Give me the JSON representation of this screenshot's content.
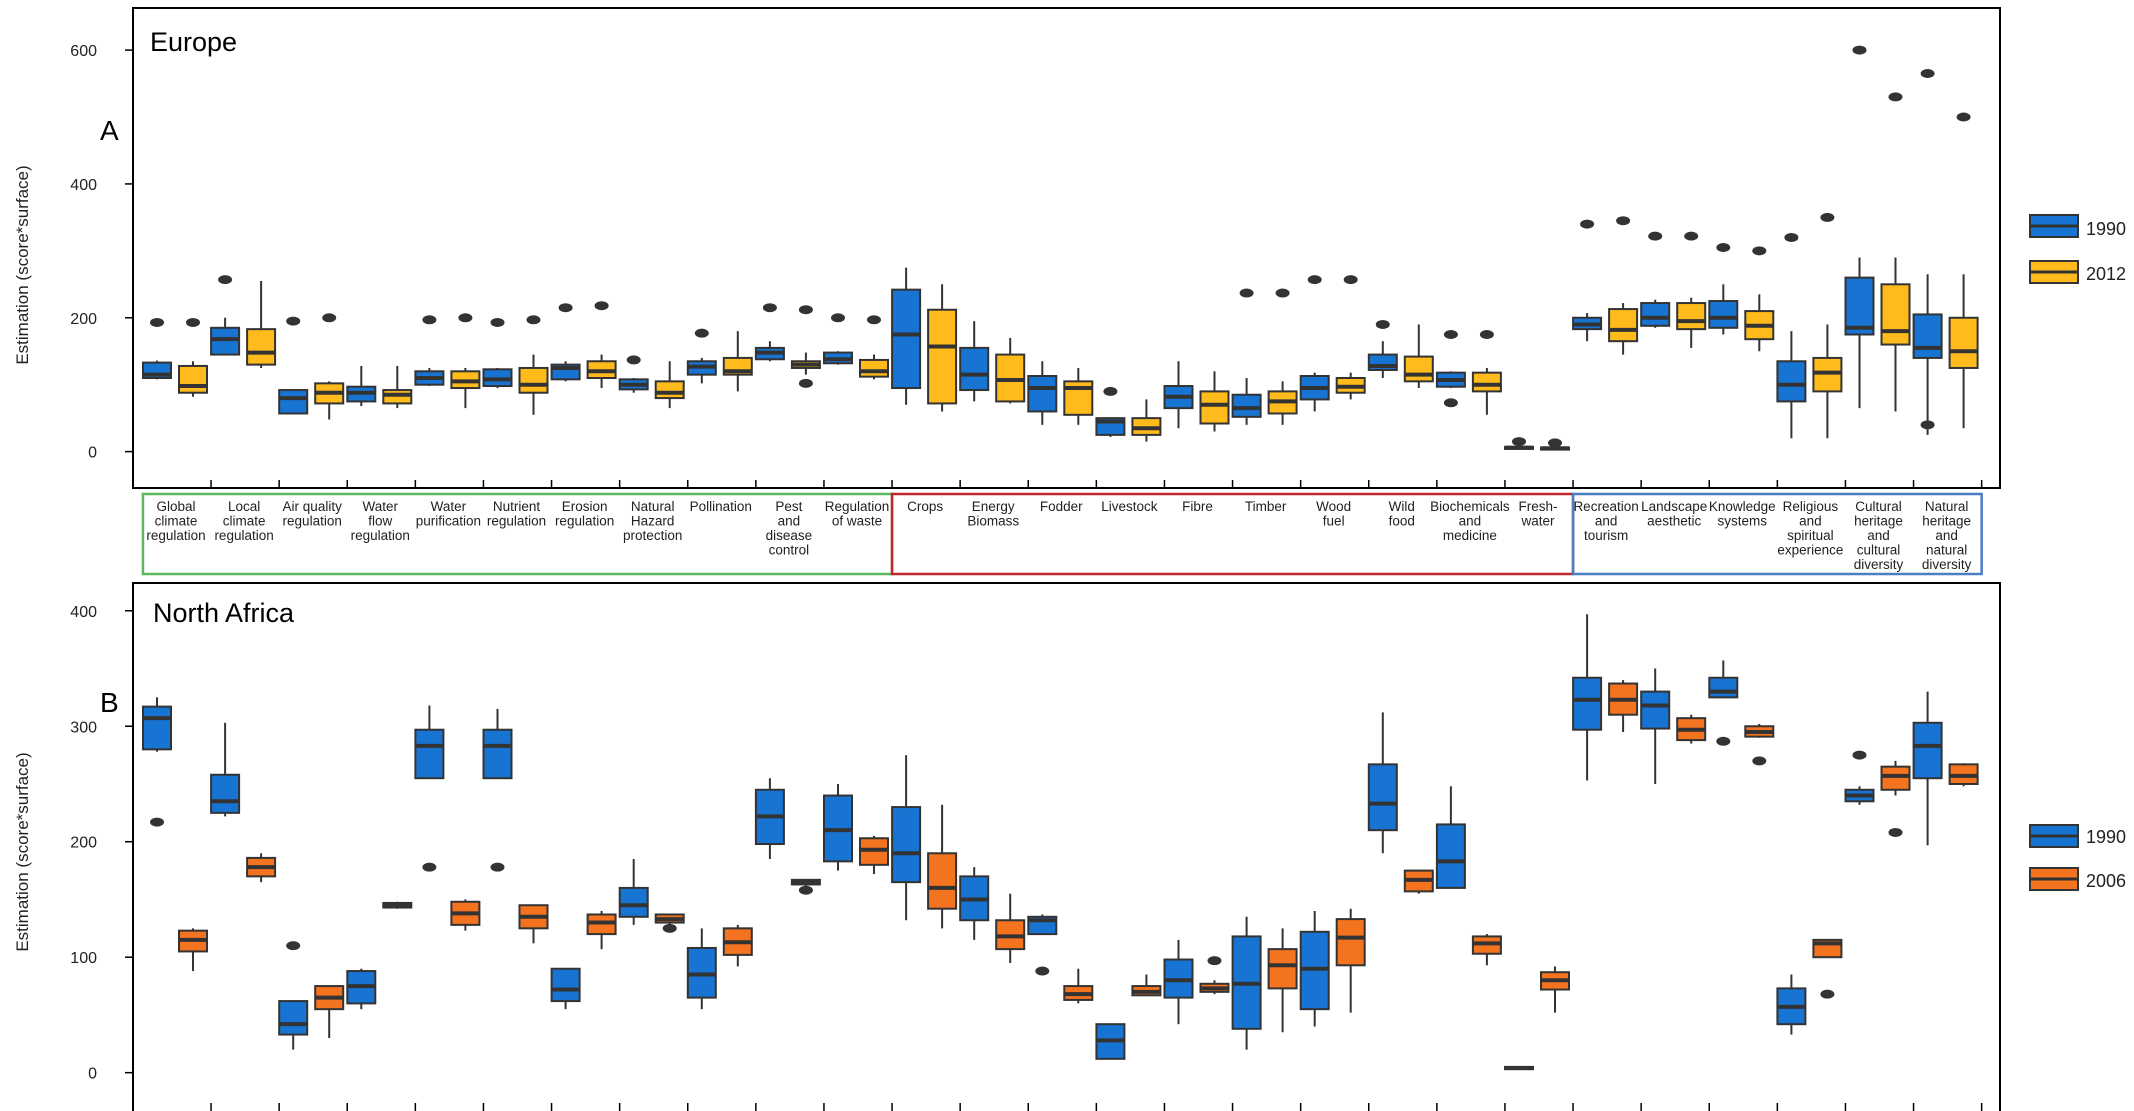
{
  "figure": {
    "panel_a_region": "Europe",
    "panel_a_letter": "A",
    "panel_b_region": "North Africa",
    "panel_b_letter": "B",
    "ylabel": "Estimation (score*surface)"
  },
  "category_labels": [
    "Global|climate|regulation",
    "Local|climate|regulation",
    "Air quality|regulation",
    "Water|flow|regulation",
    "Water|purification",
    "Nutrient|regulation",
    "Erosion|regulation",
    "Natural|Hazard|protection",
    "Pollination",
    "Pest|and|disease|control",
    "Regulation|of waste",
    "Crops",
    "Energy|Biomass",
    "Fodder",
    "Livestock",
    "Fibre",
    "Timber",
    "Wood|fuel",
    "Wild|food",
    "Biochemicals|and|medicine",
    "Fresh-|water",
    "Recreation|and|tourism",
    "Landscape|aesthetic",
    "Knowledge|systems",
    "Religious|and|spiritual|experience",
    "Cultural|heritage|and|cultural|diversity",
    "Natural|heritage|and|natural|diversity"
  ],
  "category_groups": [
    {
      "first": 0,
      "last": 10,
      "color": "#5cb85c"
    },
    {
      "first": 11,
      "last": 20,
      "color": "#c0282d"
    },
    {
      "first": 21,
      "last": 26,
      "color": "#4a7fc4"
    }
  ],
  "colors": {
    "y1990": "#1874d2",
    "y2012": "#ffbb1c",
    "y2006": "#f4731f",
    "stroke": "#333333",
    "frame": "#000000"
  },
  "chart_data": [
    {
      "type": "box",
      "title": "Europe",
      "ylabel": "Estimation (score*surface)",
      "ylim": [
        -20,
        630
      ],
      "yticks": [
        0,
        200,
        400,
        600
      ],
      "legend": {
        "position": "right",
        "entries": [
          "1990",
          "2012"
        ]
      },
      "series": [
        {
          "name": "1990",
          "color": "#1874d2",
          "boxes": [
            [
              108,
              110,
              115,
              133,
              136,
              [
                193
              ]
            ],
            [
              148,
              145,
              168,
              185,
              200,
              [
                257
              ]
            ],
            [
              57,
              57,
              80,
              92,
              92,
              [
                195
              ]
            ],
            [
              68,
              75,
              88,
              97,
              128,
              []
            ],
            [
              98,
              100,
              110,
              120,
              125,
              [
                197
              ]
            ],
            [
              95,
              98,
              108,
              123,
              125,
              [
                193
              ]
            ],
            [
              105,
              108,
              125,
              130,
              135,
              [
                215
              ]
            ],
            [
              88,
              93,
              100,
              108,
              110,
              [
                137
              ]
            ],
            [
              102,
              115,
              127,
              135,
              140,
              [
                177
              ]
            ],
            [
              135,
              138,
              148,
              155,
              165,
              [
                215
              ]
            ],
            [
              130,
              132,
              138,
              148,
              150,
              [
                200
              ]
            ],
            [
              70,
              95,
              175,
              242,
              275,
              []
            ],
            [
              75,
              92,
              115,
              155,
              195,
              []
            ],
            [
              40,
              60,
              95,
              113,
              135,
              []
            ],
            [
              22,
              25,
              45,
              50,
              50,
              [
                90
              ]
            ],
            [
              35,
              65,
              82,
              98,
              135,
              []
            ],
            [
              40,
              52,
              65,
              85,
              110,
              [
                237
              ]
            ],
            [
              60,
              78,
              95,
              113,
              118,
              [
                257
              ]
            ],
            [
              110,
              122,
              128,
              145,
              165,
              [
                190
              ]
            ],
            [
              95,
              97,
              107,
              118,
              120,
              [
                175,
                73
              ]
            ],
            [
              4,
              5,
              6,
              7,
              8,
              [
                15
              ]
            ],
            [
              165,
              183,
              190,
              200,
              207,
              [
                340
              ]
            ],
            [
              185,
              188,
              200,
              222,
              227,
              [
                322
              ]
            ],
            [
              175,
              185,
              200,
              225,
              250,
              [
                305
              ]
            ],
            [
              20,
              75,
              100,
              135,
              180,
              [
                320
              ]
            ],
            [
              65,
              175,
              185,
              260,
              290,
              [
                600
              ]
            ],
            [
              25,
              140,
              155,
              205,
              265,
              [
                565,
                40
              ]
            ]
          ]
        },
        {
          "name": "2012",
          "color": "#ffbb1c",
          "boxes": [
            [
              82,
              88,
              98,
              128,
              135,
              [
                193
              ]
            ],
            [
              125,
              130,
              148,
              183,
              255,
              []
            ],
            [
              48,
              72,
              88,
              102,
              105,
              [
                200
              ]
            ],
            [
              65,
              72,
              85,
              92,
              128,
              []
            ],
            [
              65,
              95,
              105,
              120,
              125,
              [
                200
              ]
            ],
            [
              55,
              88,
              100,
              125,
              145,
              [
                197
              ]
            ],
            [
              95,
              110,
              120,
              135,
              145,
              [
                218
              ]
            ],
            [
              65,
              80,
              88,
              105,
              135,
              []
            ],
            [
              90,
              115,
              120,
              140,
              180,
              []
            ],
            [
              115,
              125,
              130,
              135,
              148,
              [
                212,
                102
              ]
            ],
            [
              108,
              112,
              120,
              137,
              145,
              [
                197
              ]
            ],
            [
              60,
              72,
              157,
              212,
              250,
              []
            ],
            [
              72,
              75,
              107,
              145,
              170,
              []
            ],
            [
              40,
              55,
              95,
              105,
              125,
              []
            ],
            [
              15,
              25,
              35,
              50,
              78,
              []
            ],
            [
              30,
              42,
              70,
              90,
              120,
              []
            ],
            [
              40,
              57,
              75,
              90,
              105,
              [
                237
              ]
            ],
            [
              78,
              88,
              97,
              110,
              118,
              [
                257
              ]
            ],
            [
              95,
              105,
              115,
              142,
              190,
              []
            ],
            [
              55,
              90,
              100,
              118,
              125,
              [
                175
              ]
            ],
            [
              3,
              4,
              5,
              6,
              7,
              [
                13
              ]
            ],
            [
              145,
              165,
              182,
              213,
              222,
              [
                345
              ]
            ],
            [
              155,
              183,
              195,
              222,
              230,
              [
                322
              ]
            ],
            [
              150,
              168,
              188,
              210,
              235,
              [
                300
              ]
            ],
            [
              20,
              90,
              118,
              140,
              190,
              [
                350
              ]
            ],
            [
              60,
              160,
              180,
              250,
              290,
              [
                530
              ]
            ],
            [
              35,
              125,
              150,
              200,
              265,
              [
                500
              ]
            ]
          ]
        }
      ]
    },
    {
      "type": "box",
      "title": "North Africa",
      "ylabel": "Estimation (score*surface)",
      "ylim": [
        -15,
        405
      ],
      "yticks": [
        0,
        100,
        200,
        300,
        400
      ],
      "legend": {
        "position": "right",
        "entries": [
          "1990",
          "2006"
        ]
      },
      "series": [
        {
          "name": "1990",
          "color": "#1874d2",
          "boxes": [
            [
              278,
              280,
              307,
              317,
              325,
              [
                217
              ]
            ],
            [
              222,
              225,
              235,
              258,
              303,
              []
            ],
            [
              20,
              33,
              42,
              62,
              62,
              [
                110
              ]
            ],
            [
              55,
              60,
              75,
              88,
              90,
              []
            ],
            [
              255,
              255,
              283,
              297,
              318,
              [
                178
              ]
            ],
            [
              255,
              255,
              283,
              297,
              315,
              [
                178
              ]
            ],
            [
              55,
              62,
              72,
              90,
              90,
              []
            ],
            [
              128,
              135,
              145,
              160,
              185,
              []
            ],
            [
              55,
              65,
              85,
              108,
              125,
              []
            ],
            [
              185,
              198,
              222,
              245,
              255,
              []
            ],
            [
              175,
              183,
              210,
              240,
              250,
              []
            ],
            [
              132,
              165,
              190,
              230,
              275,
              []
            ],
            [
              115,
              132,
              150,
              170,
              178,
              []
            ],
            [
              120,
              120,
              132,
              135,
              137,
              [
                88
              ]
            ],
            [
              12,
              12,
              28,
              42,
              42,
              []
            ],
            [
              42,
              65,
              80,
              98,
              115,
              []
            ],
            [
              20,
              38,
              77,
              118,
              135,
              []
            ],
            [
              40,
              55,
              90,
              122,
              140,
              []
            ],
            [
              190,
              210,
              233,
              267,
              312,
              []
            ],
            [
              160,
              160,
              183,
              215,
              248,
              []
            ],
            [
              3,
              3,
              4,
              5,
              5,
              []
            ],
            [
              253,
              297,
              323,
              342,
              397,
              []
            ],
            [
              250,
              298,
              318,
              330,
              350,
              []
            ],
            [
              325,
              325,
              330,
              342,
              357,
              [
                287
              ]
            ],
            [
              33,
              42,
              57,
              73,
              85,
              []
            ],
            [
              232,
              235,
              240,
              245,
              248,
              [
                275
              ]
            ],
            [
              197,
              255,
              283,
              303,
              330,
              []
            ]
          ]
        },
        {
          "name": "2006",
          "color": "#f4731f",
          "boxes": [
            [
              88,
              105,
              115,
              123,
              125,
              []
            ],
            [
              165,
              170,
              178,
              186,
              190,
              []
            ],
            [
              30,
              55,
              65,
              75,
              75,
              []
            ],
            [
              142,
              143,
              145,
              147,
              148,
              []
            ],
            [
              123,
              128,
              138,
              148,
              150,
              []
            ],
            [
              112,
              125,
              135,
              145,
              145,
              []
            ],
            [
              107,
              120,
              130,
              137,
              140,
              []
            ],
            [
              125,
              130,
              133,
              137,
              137,
              [
                125
              ]
            ],
            [
              92,
              102,
              113,
              125,
              128,
              []
            ],
            [
              160,
              163,
              165,
              167,
              167,
              [
                158
              ]
            ],
            [
              172,
              180,
              193,
              203,
              205,
              []
            ],
            [
              125,
              142,
              160,
              190,
              232,
              []
            ],
            [
              95,
              107,
              118,
              132,
              155,
              []
            ],
            [
              60,
              63,
              68,
              75,
              90,
              []
            ],
            [
              67,
              67,
              70,
              75,
              85,
              []
            ],
            [
              68,
              70,
              73,
              77,
              80,
              [
                97
              ]
            ],
            [
              35,
              73,
              93,
              107,
              125,
              []
            ],
            [
              52,
              93,
              117,
              133,
              142,
              []
            ],
            [
              155,
              157,
              167,
              175,
              175,
              []
            ],
            [
              93,
              103,
              112,
              118,
              120,
              []
            ],
            [
              52,
              72,
              80,
              87,
              92,
              []
            ],
            [
              295,
              310,
              323,
              337,
              340,
              []
            ],
            [
              285,
              288,
              297,
              307,
              310,
              []
            ],
            [
              290,
              291,
              295,
              300,
              302,
              [
                270
              ]
            ],
            [
              100,
              100,
              112,
              115,
              115,
              [
                68
              ]
            ],
            [
              240,
              245,
              257,
              265,
              270,
              [
                208
              ]
            ],
            [
              248,
              250,
              257,
              267,
              268,
              []
            ]
          ]
        }
      ]
    }
  ]
}
